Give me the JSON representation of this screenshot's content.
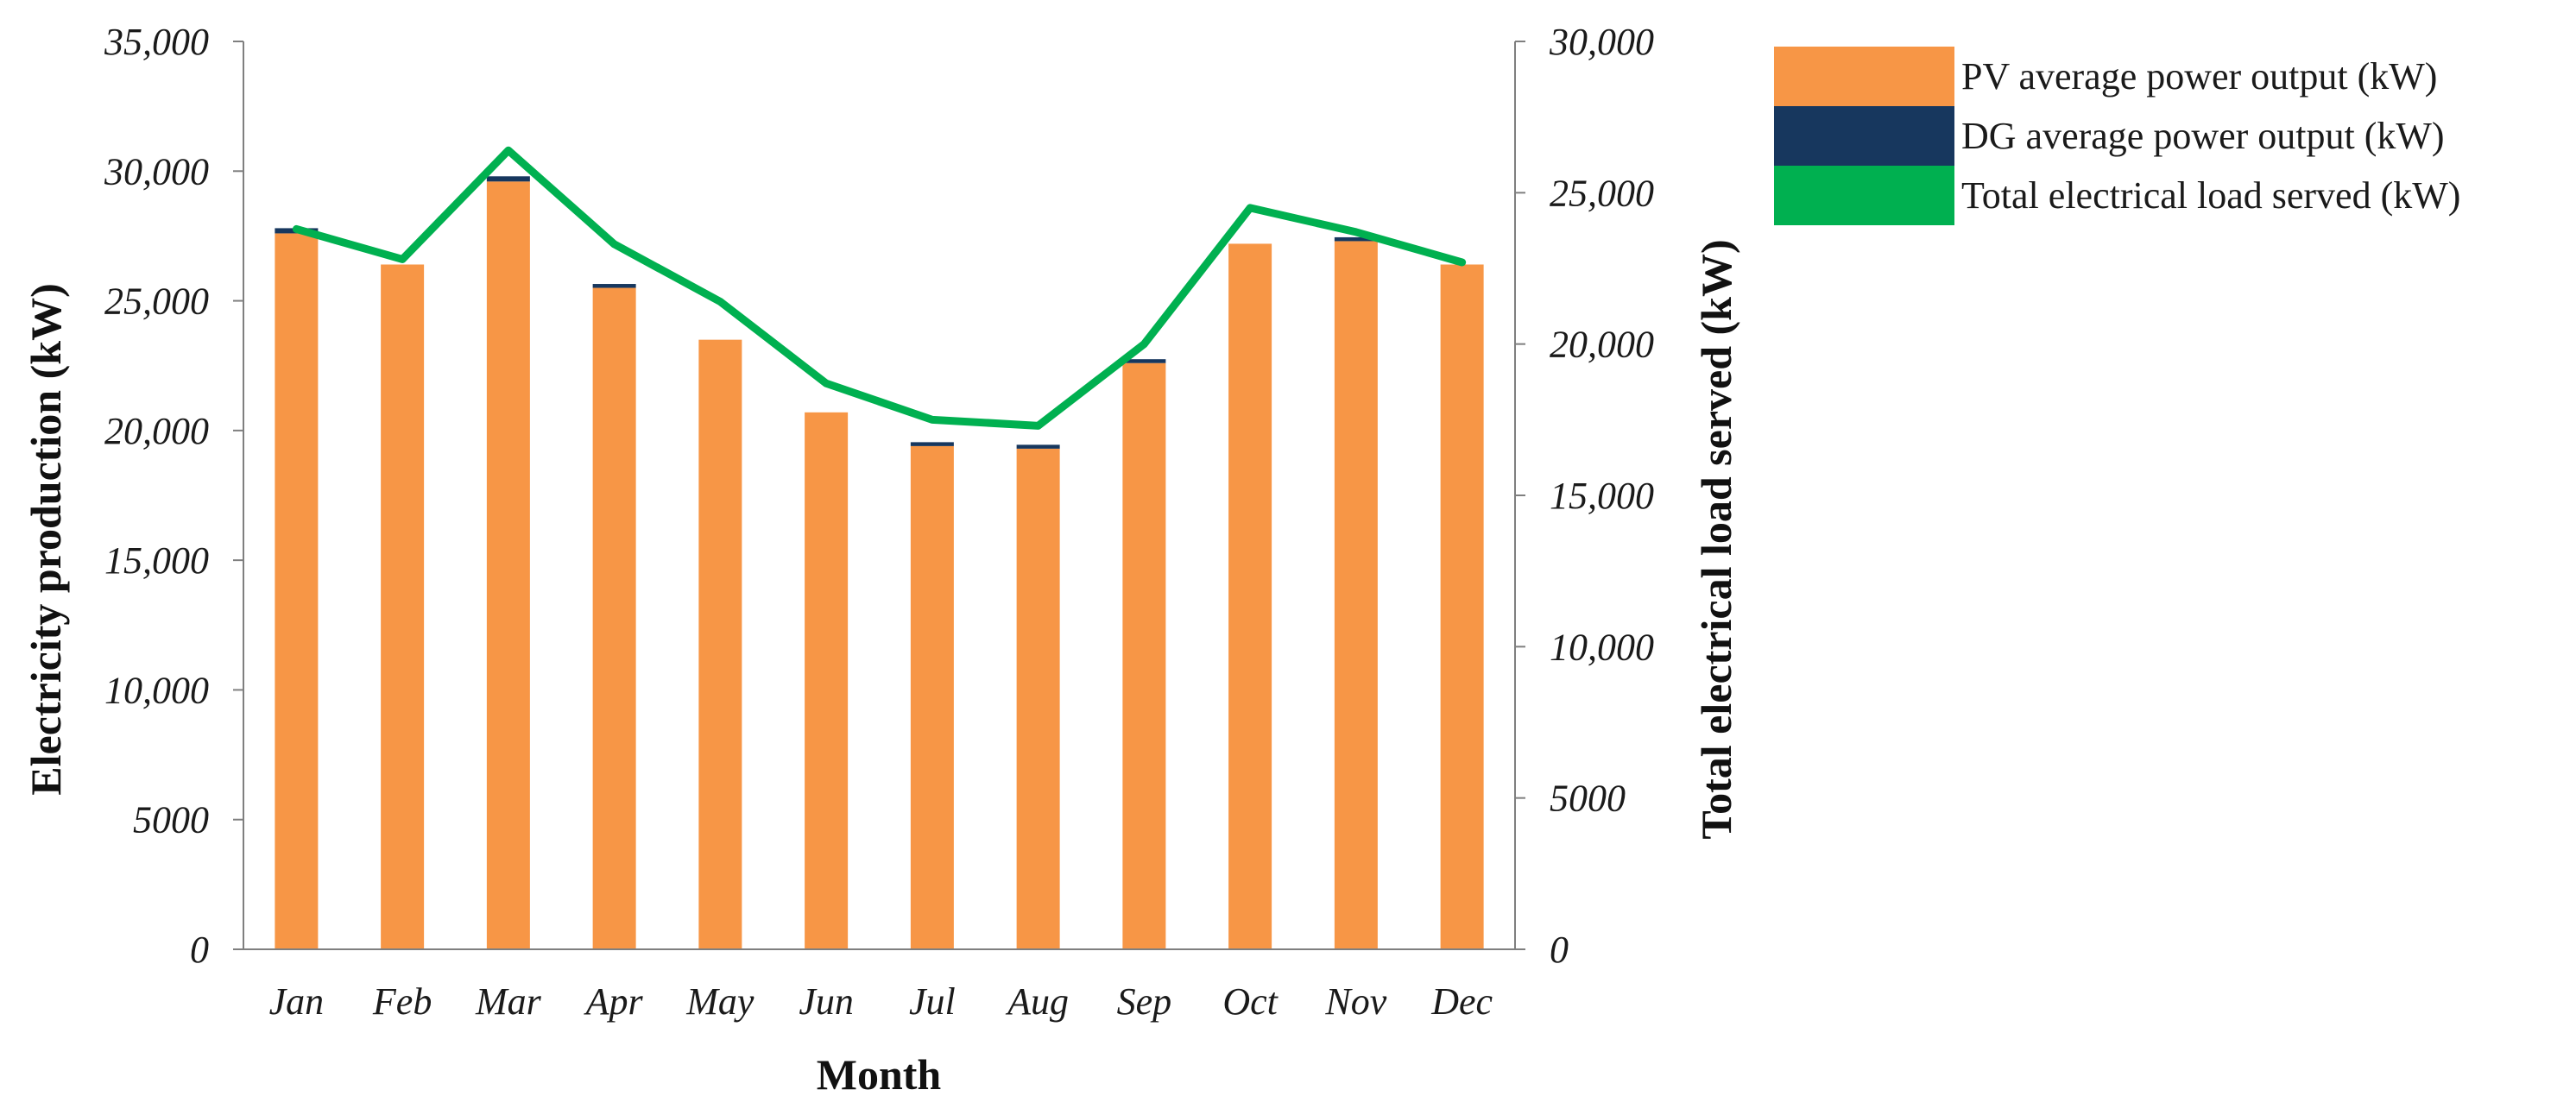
{
  "chart_data": {
    "type": "bar",
    "categories": [
      "Jan",
      "Feb",
      "Mar",
      "Apr",
      "May",
      "Jun",
      "Jul",
      "Aug",
      "Sep",
      "Oct",
      "Nov",
      "Dec"
    ],
    "xlabel": "Month",
    "ylabel": "Electricity production (kW)",
    "y2label": "Total electrical load served (kW)",
    "ylim": [
      0,
      35000
    ],
    "y2lim": [
      0,
      30000
    ],
    "yticks": [
      "0",
      "5000",
      "10,000",
      "15,000",
      "20,000",
      "25,000",
      "30,000",
      "35,000"
    ],
    "y2ticks": [
      "0",
      "5000",
      "10,000",
      "15,000",
      "20,000",
      "25,000",
      "30,000"
    ],
    "grid": false,
    "legend_position": "top-right",
    "series": [
      {
        "name": "PV average power output (kW)",
        "kind": "stacked-bar",
        "axis": "left",
        "color": "#F79646",
        "values": [
          27600,
          26400,
          29600,
          25500,
          23500,
          20700,
          19400,
          19300,
          22600,
          27200,
          27300,
          26400
        ]
      },
      {
        "name": "DG average power output (kW)",
        "kind": "stacked-bar",
        "axis": "left",
        "color": "#17375E",
        "values": [
          200,
          0,
          200,
          150,
          0,
          0,
          150,
          150,
          150,
          0,
          150,
          0
        ]
      },
      {
        "name": "Total electrical load served (kW)",
        "kind": "line",
        "axis": "right",
        "color": "#00B050",
        "values": [
          23800,
          22800,
          26400,
          23300,
          21400,
          18700,
          17500,
          17300,
          20000,
          24500,
          23700,
          22700
        ]
      }
    ]
  }
}
